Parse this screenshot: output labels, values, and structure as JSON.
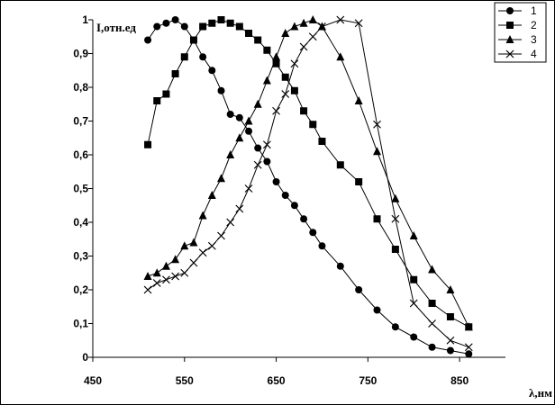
{
  "chart_data": {
    "type": "line",
    "ylabel": "I,отн.ед",
    "xlabel": "λ,нм",
    "xlim": [
      450,
      900
    ],
    "ylim": [
      0,
      1
    ],
    "x_ticks": [
      "450",
      "550",
      "650",
      "750",
      "850"
    ],
    "y_ticks": [
      "0",
      "0,1",
      "0,2",
      "0,3",
      "0,4",
      "0,5",
      "0,6",
      "0,7",
      "0,8",
      "0,9",
      "1"
    ],
    "grid": false,
    "legend_position": "top-right",
    "series": [
      {
        "name": "1",
        "marker": "circle",
        "x": [
          510,
          520,
          530,
          540,
          550,
          560,
          570,
          580,
          590,
          600,
          610,
          620,
          630,
          640,
          650,
          660,
          670,
          680,
          690,
          700,
          720,
          740,
          760,
          780,
          800,
          820,
          840,
          860
        ],
        "y": [
          0.94,
          0.98,
          0.99,
          1.0,
          0.98,
          0.94,
          0.89,
          0.85,
          0.79,
          0.72,
          0.71,
          0.67,
          0.62,
          0.58,
          0.52,
          0.48,
          0.45,
          0.41,
          0.37,
          0.33,
          0.27,
          0.2,
          0.14,
          0.09,
          0.06,
          0.03,
          0.02,
          0.01
        ]
      },
      {
        "name": "2",
        "marker": "square",
        "x": [
          510,
          520,
          530,
          540,
          550,
          560,
          570,
          580,
          590,
          600,
          610,
          620,
          630,
          640,
          650,
          660,
          670,
          680,
          690,
          700,
          720,
          740,
          760,
          780,
          800,
          820,
          840,
          860
        ],
        "y": [
          0.63,
          0.76,
          0.78,
          0.84,
          0.89,
          0.94,
          0.98,
          0.99,
          1.0,
          0.99,
          0.98,
          0.96,
          0.94,
          0.91,
          0.87,
          0.83,
          0.79,
          0.73,
          0.69,
          0.64,
          0.57,
          0.52,
          0.41,
          0.32,
          0.23,
          0.16,
          0.12,
          0.09
        ]
      },
      {
        "name": "3",
        "marker": "triangle",
        "x": [
          510,
          520,
          530,
          540,
          550,
          560,
          570,
          580,
          590,
          600,
          610,
          620,
          630,
          640,
          650,
          660,
          670,
          680,
          690,
          700,
          720,
          740,
          760,
          780,
          800,
          820,
          840,
          860
        ],
        "y": [
          0.24,
          0.25,
          0.27,
          0.29,
          0.33,
          0.34,
          0.42,
          0.48,
          0.53,
          0.6,
          0.65,
          0.7,
          0.75,
          0.82,
          0.89,
          0.96,
          0.98,
          0.99,
          1.0,
          0.98,
          0.89,
          0.76,
          0.61,
          0.47,
          0.36,
          0.26,
          0.2,
          0.09
        ]
      },
      {
        "name": "4",
        "marker": "x",
        "x": [
          510,
          520,
          530,
          540,
          550,
          560,
          570,
          580,
          590,
          600,
          610,
          620,
          630,
          640,
          650,
          660,
          670,
          680,
          690,
          700,
          720,
          740,
          760,
          780,
          800,
          820,
          840,
          860
        ],
        "y": [
          0.2,
          0.22,
          0.23,
          0.24,
          0.25,
          0.28,
          0.31,
          0.33,
          0.36,
          0.4,
          0.44,
          0.5,
          0.57,
          0.63,
          0.73,
          0.78,
          0.87,
          0.92,
          0.95,
          0.98,
          1.0,
          0.99,
          0.69,
          0.41,
          0.16,
          0.1,
          0.05,
          0.03
        ]
      }
    ]
  }
}
